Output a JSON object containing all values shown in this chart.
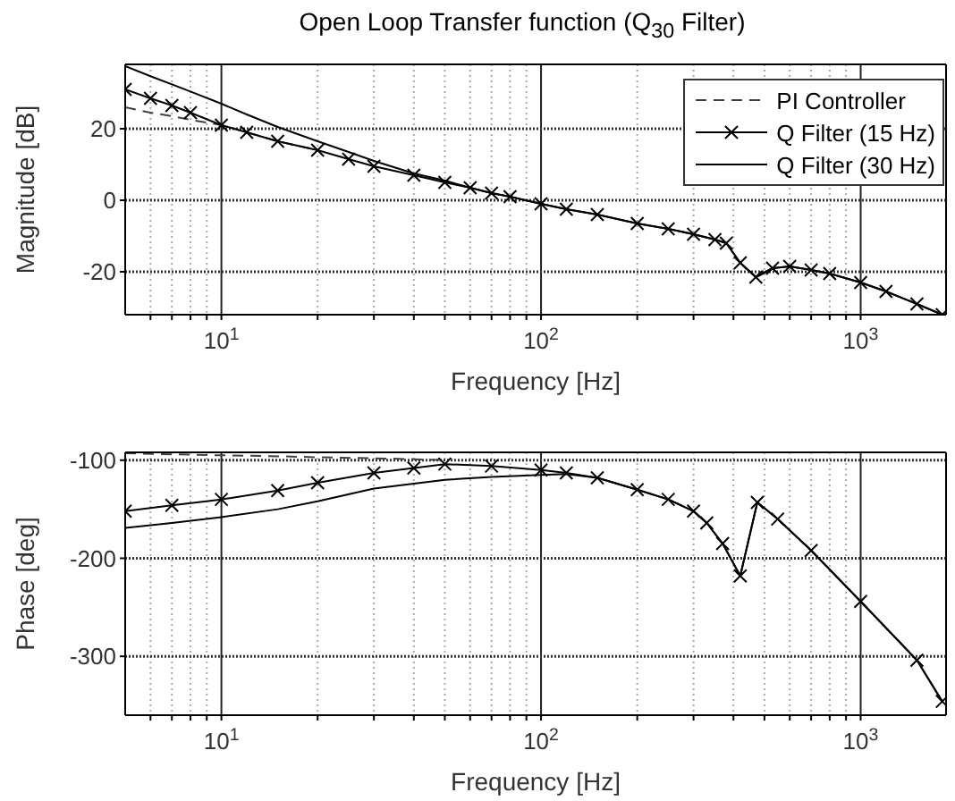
{
  "chart_data": [
    {
      "type": "line",
      "title": "Open Loop Transfer function (Q$_{30}$ Filter)",
      "xlabel": "Frequency [Hz]",
      "ylabel": "Magnitude [dB]",
      "log": "x",
      "grid": true,
      "legend": "top right",
      "x": [
        5,
        6,
        7,
        8,
        10,
        12,
        15,
        20,
        25,
        30,
        40,
        50,
        60,
        70,
        80,
        100,
        120,
        150,
        200,
        250,
        300,
        350,
        380,
        420,
        470,
        530,
        600,
        700,
        800,
        1000,
        1200,
        1500,
        1800
      ],
      "xlim": [
        5,
        1850
      ],
      "xticks": [
        {
          "value": 6,
          "label": null
        },
        {
          "value": 7,
          "label": null
        },
        {
          "value": 8,
          "label": null
        },
        {
          "value": 9,
          "label": null
        },
        {
          "value": 10,
          "label": "10$^{1}$"
        },
        {
          "value": 20,
          "label": null
        },
        {
          "value": 30,
          "label": null
        },
        {
          "value": 40,
          "label": null
        },
        {
          "value": 50,
          "label": null
        },
        {
          "value": 60,
          "label": null
        },
        {
          "value": 70,
          "label": null
        },
        {
          "value": 80,
          "label": null
        },
        {
          "value": 90,
          "label": null
        },
        {
          "value": 100,
          "label": "10$^{2}$"
        },
        {
          "value": 200,
          "label": null
        },
        {
          "value": 300,
          "label": null
        },
        {
          "value": 400,
          "label": null
        },
        {
          "value": 500,
          "label": null
        },
        {
          "value": 600,
          "label": null
        },
        {
          "value": 700,
          "label": null
        },
        {
          "value": 800,
          "label": null
        },
        {
          "value": 900,
          "label": null
        },
        {
          "value": 1000,
          "label": "10$^{3}$"
        }
      ],
      "ylim": [
        -32,
        38
      ],
      "yticks": [
        -20,
        0,
        20
      ],
      "series": [
        {
          "name": "PI Controller",
          "color": "#404040",
          "line_style": "dashed",
          "marker": "none",
          "values": [
            26,
            24.5,
            23.5,
            22.5,
            21,
            19,
            16.5,
            14,
            null,
            null,
            null,
            null,
            null,
            null,
            null,
            null,
            null,
            null,
            null,
            null,
            null,
            null,
            null,
            null,
            null,
            null,
            null,
            null,
            null,
            null,
            null,
            null,
            null
          ]
        },
        {
          "name": "Q Filter (15 Hz)",
          "color": "#000000",
          "line_style": "solid",
          "marker": "cross",
          "values": [
            31,
            28.5,
            26.5,
            24.5,
            21,
            19,
            16.5,
            14,
            11.5,
            9.5,
            7,
            5,
            3.5,
            2,
            1,
            -1,
            -2.5,
            -4,
            -6.5,
            -8,
            -9.5,
            -11,
            -12,
            -17.5,
            -21.5,
            -19,
            -18.5,
            -19.5,
            -20.5,
            -23,
            -25.5,
            -29,
            -32
          ]
        },
        {
          "name": "Q Filter (30 Hz)",
          "color": "#000000",
          "line_style": "solid",
          "marker": "none",
          "values": [
            37.5,
            34.7,
            32.4,
            30.4,
            27,
            24,
            20.5,
            16.5,
            13.5,
            11,
            7.5,
            5.5,
            3.5,
            2,
            1,
            -1,
            -2.5,
            -4,
            -6.5,
            -8,
            -9.5,
            -11,
            -12,
            -17.5,
            -21.5,
            -19,
            -18.5,
            -19.5,
            -20.5,
            -23,
            -25.5,
            -29,
            -32
          ]
        }
      ]
    },
    {
      "type": "line",
      "xlabel": "Frequency [Hz]",
      "ylabel": "Phase [deg]",
      "log": "x",
      "grid": true,
      "x": [
        5,
        7,
        10,
        15,
        20,
        30,
        40,
        50,
        70,
        100,
        120,
        150,
        200,
        250,
        300,
        330,
        370,
        420,
        475,
        550,
        700,
        1000,
        1500,
        1800
      ],
      "xlim": [
        5,
        1850
      ],
      "xticks": [
        {
          "value": 6,
          "label": null
        },
        {
          "value": 7,
          "label": null
        },
        {
          "value": 8,
          "label": null
        },
        {
          "value": 9,
          "label": null
        },
        {
          "value": 10,
          "label": "10$^{1}$"
        },
        {
          "value": 20,
          "label": null
        },
        {
          "value": 30,
          "label": null
        },
        {
          "value": 40,
          "label": null
        },
        {
          "value": 50,
          "label": null
        },
        {
          "value": 60,
          "label": null
        },
        {
          "value": 70,
          "label": null
        },
        {
          "value": 80,
          "label": null
        },
        {
          "value": 90,
          "label": null
        },
        {
          "value": 100,
          "label": "10$^{2}$"
        },
        {
          "value": 200,
          "label": null
        },
        {
          "value": 300,
          "label": null
        },
        {
          "value": 400,
          "label": null
        },
        {
          "value": 500,
          "label": null
        },
        {
          "value": 600,
          "label": null
        },
        {
          "value": 700,
          "label": null
        },
        {
          "value": 800,
          "label": null
        },
        {
          "value": 900,
          "label": null
        },
        {
          "value": 1000,
          "label": "10$^{3}$"
        }
      ],
      "ylim": [
        -360,
        -92
      ],
      "yticks": [
        -300,
        -200,
        -100
      ],
      "series": [
        {
          "color": "#404040",
          "line_style": "dashed",
          "marker": "none",
          "values": [
            -93,
            -94,
            -95,
            -96,
            -97,
            -98,
            -99,
            -100,
            null,
            null,
            null,
            null,
            null,
            null,
            null,
            null,
            null,
            null,
            null,
            null,
            null,
            null,
            null,
            null
          ]
        },
        {
          "color": "#000000",
          "line_style": "solid",
          "marker": "cross",
          "values": [
            -152,
            -146,
            -140,
            -131,
            -123,
            -113,
            -108,
            -104,
            -106,
            -110,
            -113,
            -118,
            -130,
            -140,
            -152,
            -164,
            -185,
            -218,
            -143,
            -160,
            -192,
            -244,
            -304,
            -346
          ]
        },
        {
          "color": "#000000",
          "line_style": "solid",
          "marker": "none",
          "values": [
            -169,
            -164,
            -158,
            -150,
            -142,
            -129,
            -124,
            -120,
            -117,
            -115,
            -114,
            -118,
            -130,
            -140,
            -152,
            -164,
            -185,
            -218,
            -143,
            -160,
            -192,
            -244,
            -304,
            -346
          ]
        }
      ]
    }
  ]
}
